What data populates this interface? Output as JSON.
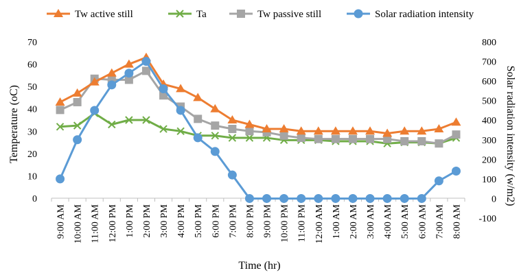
{
  "chart_data": {
    "type": "line",
    "title": "",
    "xlabel": "Time (hr)",
    "ylabel": "Temperature (oC)",
    "y2label": "Solar radiation intensity (w/m2)",
    "ylim": [
      0,
      70
    ],
    "y2lim": [
      -100,
      800
    ],
    "yticks": [
      "0",
      "10",
      "20",
      "30",
      "40",
      "50",
      "60",
      "70"
    ],
    "y2ticks": [
      "-100",
      "0",
      "100",
      "200",
      "300",
      "400",
      "500",
      "600",
      "700",
      "800"
    ],
    "grid": false,
    "legend_position": "top",
    "categories": [
      "9:00 AM",
      "10:00 AM",
      "11:00 AM",
      "12:00 PM",
      "1:00 PM",
      "2:00 PM",
      "3:00 PM",
      "4:00 PM",
      "5:00 PM",
      "6:00 PM",
      "7:00 PM",
      "8:00 PM",
      "9:00 PM",
      "10:00 PM",
      "11:00 PM",
      "12:00 AM",
      "1:00 AM",
      "2:00 AM",
      "3:00 AM",
      "4:00 AM",
      "5:00 AM",
      "6:00 AM",
      "7:00 AM",
      "8:00 AM"
    ],
    "series": [
      {
        "name": "Tw active still",
        "axis": "left",
        "color": "#ED7D31",
        "marker": "triangle",
        "values": [
          43,
          47,
          52,
          56,
          60,
          63,
          51,
          49,
          45,
          40,
          35,
          33,
          31,
          31,
          30,
          30,
          30,
          30,
          30,
          29,
          30,
          30,
          31,
          34
        ]
      },
      {
        "name": "Ta",
        "axis": "left",
        "color": "#70AD47",
        "marker": "x",
        "values": [
          32,
          32.5,
          38,
          33,
          35,
          35,
          31,
          30,
          28,
          28,
          27,
          27,
          27,
          26,
          26,
          26,
          25.5,
          25.5,
          25.5,
          24.5,
          25,
          25,
          24.5,
          27
        ]
      },
      {
        "name": "Tw passive still",
        "axis": "left",
        "color": "#A5A5A5",
        "marker": "square",
        "values": [
          39.5,
          43,
          53.5,
          53,
          53,
          57,
          46,
          41,
          35.5,
          32.5,
          31,
          30,
          29.5,
          28,
          27,
          26.5,
          26.5,
          26.5,
          26.5,
          26.5,
          25.5,
          25.5,
          24.5,
          28.5
        ]
      },
      {
        "name": "Solar radiation intensity",
        "axis": "right",
        "color": "#5B9BD5",
        "marker": "circle",
        "values": [
          100,
          300,
          450,
          580,
          640,
          700,
          560,
          450,
          310,
          240,
          120,
          0,
          0,
          0,
          0,
          0,
          0,
          0,
          0,
          0,
          0,
          0,
          90,
          140
        ]
      }
    ]
  }
}
